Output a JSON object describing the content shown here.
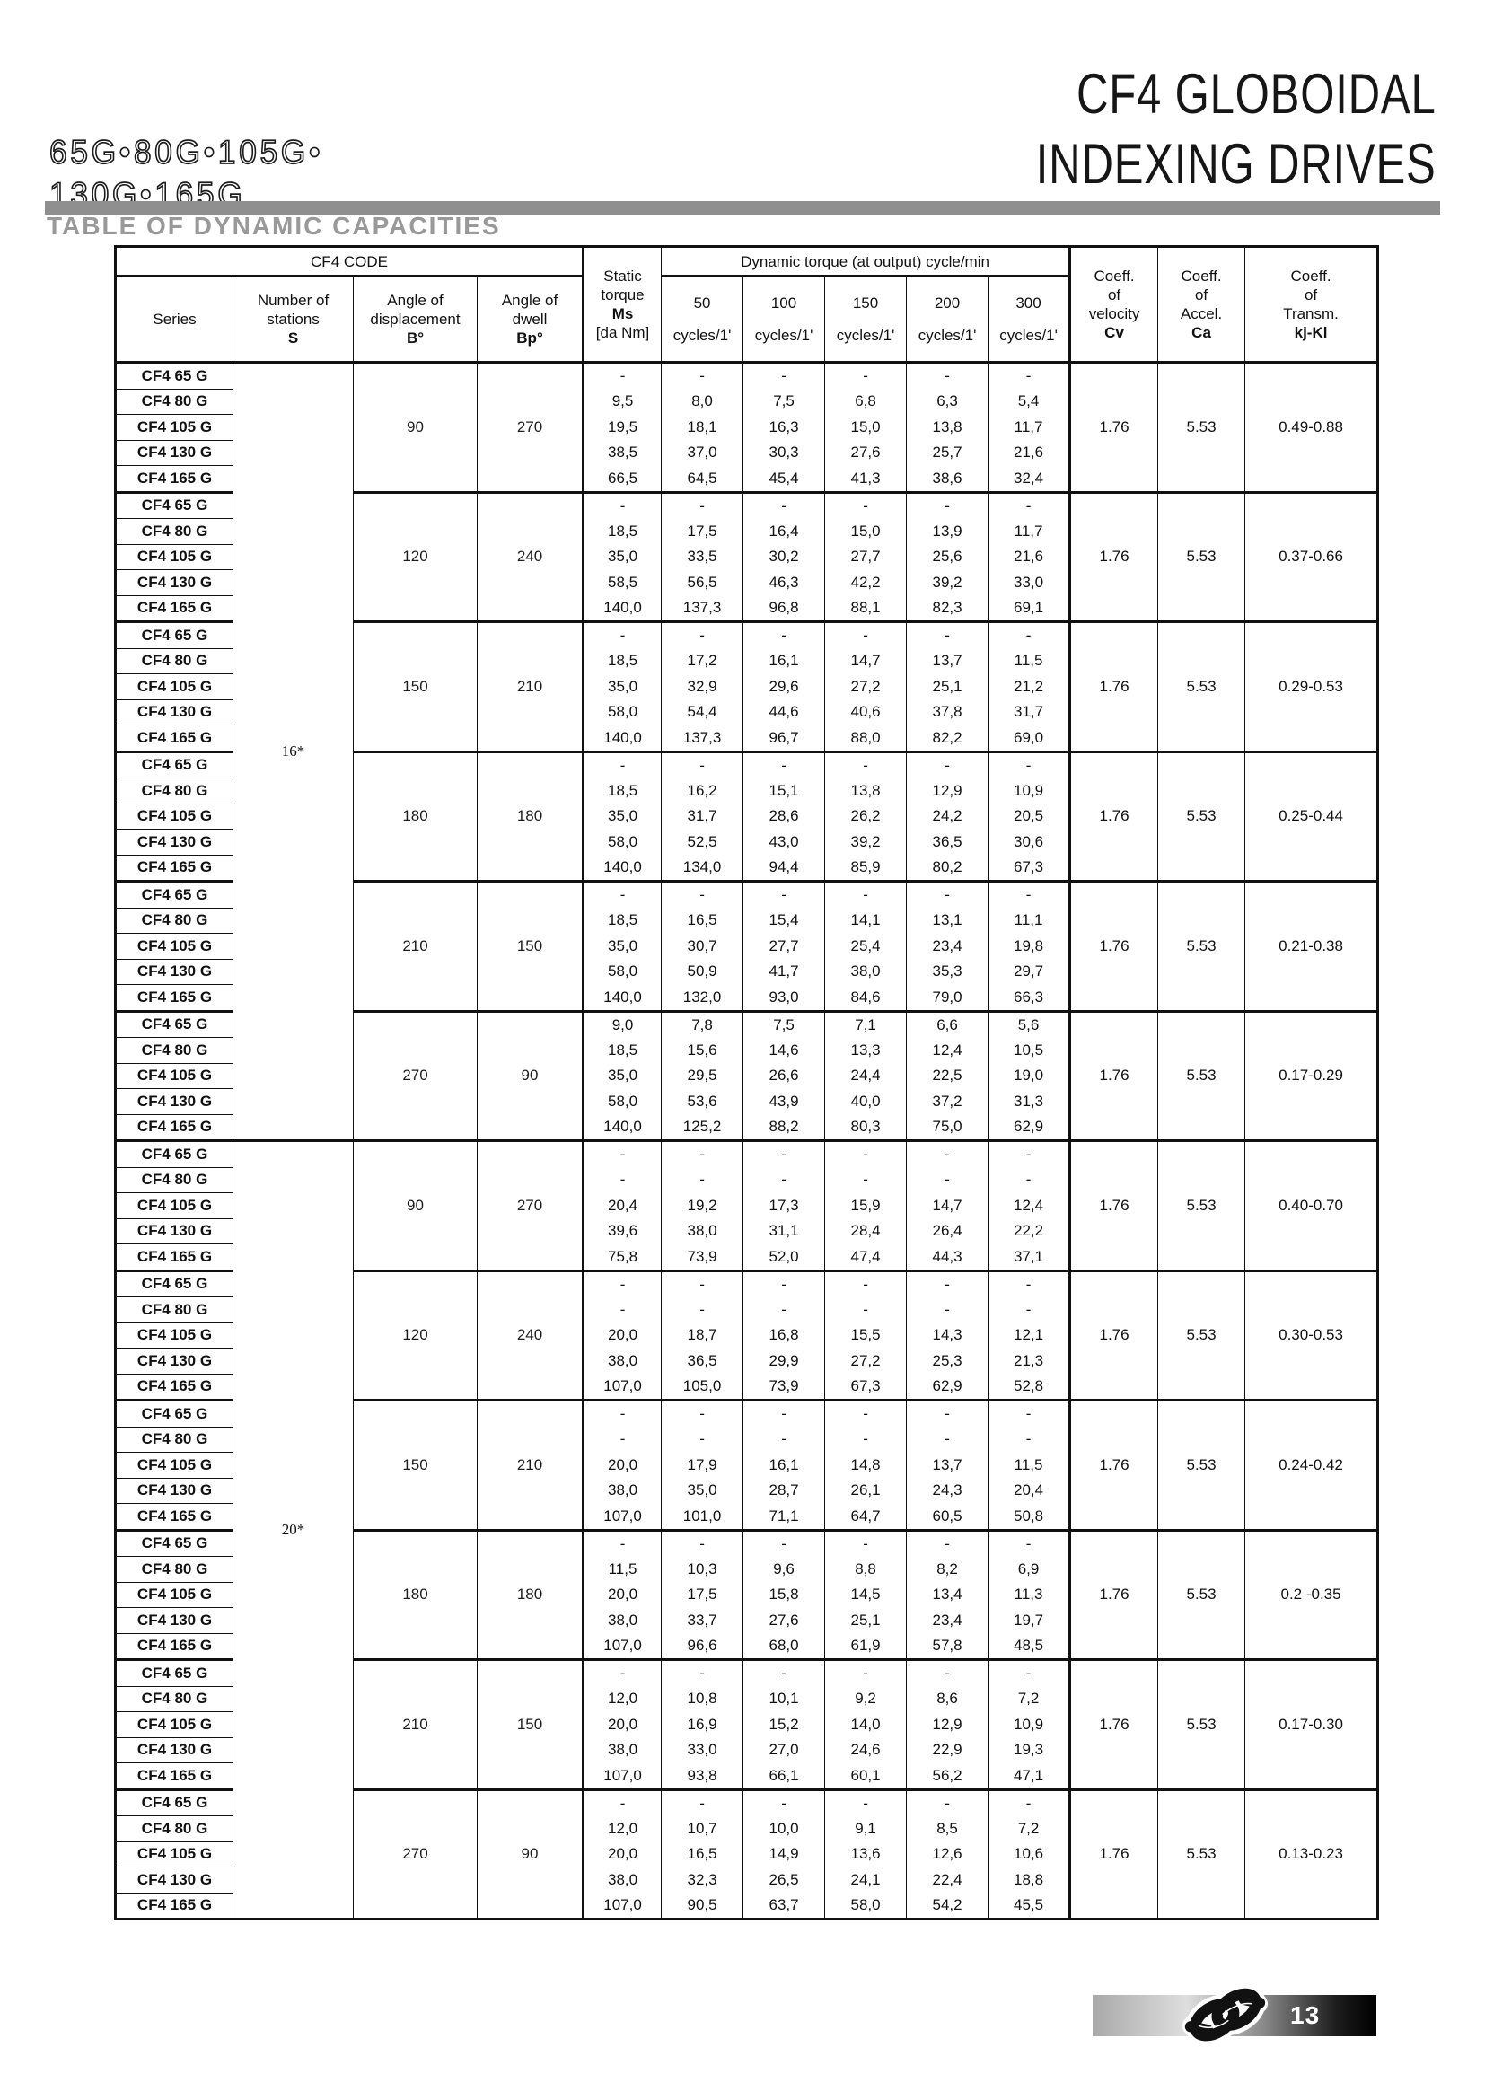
{
  "page": {
    "codes": "65G•80G•105G•\n130G•165G",
    "title": "CF4 GLOBOIDAL\nINDEXING DRIVES",
    "section_title": "TABLE OF DYNAMIC CAPACITIES",
    "page_number": "13",
    "logo_icon": "knot-logo-icon",
    "accent_gray": "#8f8f8f",
    "title_gray": "#999999"
  },
  "table": {
    "header": {
      "cf4_code": "CF4 CODE",
      "dynamic_group": "Dynamic torque (at output) cycle/min",
      "series": "Series",
      "stations_label": "Number of\nstations",
      "stations_symbol": "S",
      "displacement_label": "Angle of\ndisplacement",
      "displacement_symbol": "B°",
      "dwell_label": "Angle of\ndwell",
      "dwell_symbol": "Bp°",
      "static_label": "Static\ntorque",
      "static_symbol": "Ms",
      "static_unit": "[da Nm]",
      "cycles": [
        {
          "rate": "50",
          "unit": "cycles/1'"
        },
        {
          "rate": "100",
          "unit": "cycles/1'"
        },
        {
          "rate": "150",
          "unit": "cycles/1'"
        },
        {
          "rate": "200",
          "unit": "cycles/1'"
        },
        {
          "rate": "300",
          "unit": "cycles/1'"
        }
      ],
      "cv_label": "Coeff.\nof\nvelocity",
      "cv_symbol": "Cv",
      "ca_label": "Coeff.\nof\nAccel.",
      "ca_symbol": "Ca",
      "kj_label": "Coeff.\nof\nTransm.",
      "kj_symbol": "kj-Kl"
    },
    "series_names": [
      "CF4 65 G",
      "CF4 80 G",
      "CF4 105 G",
      "CF4 130 G",
      "CF4 165 G"
    ],
    "groups": [
      {
        "label": "16*",
        "blocks": 6
      },
      {
        "label": "20*",
        "blocks": 6
      }
    ],
    "blocks": [
      {
        "group": "16*",
        "displacement": "90",
        "dwell": "270",
        "rows": [
          [
            "-",
            "-",
            "-",
            "-",
            "-",
            "-"
          ],
          [
            "9,5",
            "8,0",
            "7,5",
            "6,8",
            "6,3",
            "5,4"
          ],
          [
            "19,5",
            "18,1",
            "16,3",
            "15,0",
            "13,8",
            "11,7"
          ],
          [
            "38,5",
            "37,0",
            "30,3",
            "27,6",
            "25,7",
            "21,6"
          ],
          [
            "66,5",
            "64,5",
            "45,4",
            "41,3",
            "38,6",
            "32,4"
          ]
        ],
        "cv": "1.76",
        "ca": "5.53",
        "kj": "0.49-0.88"
      },
      {
        "group": "16*",
        "displacement": "120",
        "dwell": "240",
        "rows": [
          [
            "-",
            "-",
            "-",
            "-",
            "-",
            "-"
          ],
          [
            "18,5",
            "17,5",
            "16,4",
            "15,0",
            "13,9",
            "11,7"
          ],
          [
            "35,0",
            "33,5",
            "30,2",
            "27,7",
            "25,6",
            "21,6"
          ],
          [
            "58,5",
            "56,5",
            "46,3",
            "42,2",
            "39,2",
            "33,0"
          ],
          [
            "140,0",
            "137,3",
            "96,8",
            "88,1",
            "82,3",
            "69,1"
          ]
        ],
        "cv": "1.76",
        "ca": "5.53",
        "kj": "0.37-0.66"
      },
      {
        "group": "16*",
        "displacement": "150",
        "dwell": "210",
        "rows": [
          [
            "-",
            "-",
            "-",
            "-",
            "-",
            "-"
          ],
          [
            "18,5",
            "17,2",
            "16,1",
            "14,7",
            "13,7",
            "11,5"
          ],
          [
            "35,0",
            "32,9",
            "29,6",
            "27,2",
            "25,1",
            "21,2"
          ],
          [
            "58,0",
            "54,4",
            "44,6",
            "40,6",
            "37,8",
            "31,7"
          ],
          [
            "140,0",
            "137,3",
            "96,7",
            "88,0",
            "82,2",
            "69,0"
          ]
        ],
        "cv": "1.76",
        "ca": "5.53",
        "kj": "0.29-0.53"
      },
      {
        "group": "16*",
        "displacement": "180",
        "dwell": "180",
        "rows": [
          [
            "-",
            "-",
            "-",
            "-",
            "-",
            "-"
          ],
          [
            "18,5",
            "16,2",
            "15,1",
            "13,8",
            "12,9",
            "10,9"
          ],
          [
            "35,0",
            "31,7",
            "28,6",
            "26,2",
            "24,2",
            "20,5"
          ],
          [
            "58,0",
            "52,5",
            "43,0",
            "39,2",
            "36,5",
            "30,6"
          ],
          [
            "140,0",
            "134,0",
            "94,4",
            "85,9",
            "80,2",
            "67,3"
          ]
        ],
        "cv": "1.76",
        "ca": "5.53",
        "kj": "0.25-0.44"
      },
      {
        "group": "16*",
        "displacement": "210",
        "dwell": "150",
        "rows": [
          [
            "-",
            "-",
            "-",
            "-",
            "-",
            "-"
          ],
          [
            "18,5",
            "16,5",
            "15,4",
            "14,1",
            "13,1",
            "11,1"
          ],
          [
            "35,0",
            "30,7",
            "27,7",
            "25,4",
            "23,4",
            "19,8"
          ],
          [
            "58,0",
            "50,9",
            "41,7",
            "38,0",
            "35,3",
            "29,7"
          ],
          [
            "140,0",
            "132,0",
            "93,0",
            "84,6",
            "79,0",
            "66,3"
          ]
        ],
        "cv": "1.76",
        "ca": "5.53",
        "kj": "0.21-0.38"
      },
      {
        "group": "16*",
        "displacement": "270",
        "dwell": "90",
        "rows": [
          [
            "9,0",
            "7,8",
            "7,5",
            "7,1",
            "6,6",
            "5,6"
          ],
          [
            "18,5",
            "15,6",
            "14,6",
            "13,3",
            "12,4",
            "10,5"
          ],
          [
            "35,0",
            "29,5",
            "26,6",
            "24,4",
            "22,5",
            "19,0"
          ],
          [
            "58,0",
            "53,6",
            "43,9",
            "40,0",
            "37,2",
            "31,3"
          ],
          [
            "140,0",
            "125,2",
            "88,2",
            "80,3",
            "75,0",
            "62,9"
          ]
        ],
        "cv": "1.76",
        "ca": "5.53",
        "kj": "0.17-0.29"
      },
      {
        "group": "20*",
        "displacement": "90",
        "dwell": "270",
        "rows": [
          [
            "-",
            "-",
            "-",
            "-",
            "-",
            "-"
          ],
          [
            "-",
            "-",
            "-",
            "-",
            "-",
            "-"
          ],
          [
            "20,4",
            "19,2",
            "17,3",
            "15,9",
            "14,7",
            "12,4"
          ],
          [
            "39,6",
            "38,0",
            "31,1",
            "28,4",
            "26,4",
            "22,2"
          ],
          [
            "75,8",
            "73,9",
            "52,0",
            "47,4",
            "44,3",
            "37,1"
          ]
        ],
        "cv": "1.76",
        "ca": "5.53",
        "kj": "0.40-0.70"
      },
      {
        "group": "20*",
        "displacement": "120",
        "dwell": "240",
        "rows": [
          [
            "-",
            "-",
            "-",
            "-",
            "-",
            "-"
          ],
          [
            "-",
            "-",
            "-",
            "-",
            "-",
            "-"
          ],
          [
            "20,0",
            "18,7",
            "16,8",
            "15,5",
            "14,3",
            "12,1"
          ],
          [
            "38,0",
            "36,5",
            "29,9",
            "27,2",
            "25,3",
            "21,3"
          ],
          [
            "107,0",
            "105,0",
            "73,9",
            "67,3",
            "62,9",
            "52,8"
          ]
        ],
        "cv": "1.76",
        "ca": "5.53",
        "kj": "0.30-0.53"
      },
      {
        "group": "20*",
        "displacement": "150",
        "dwell": "210",
        "rows": [
          [
            "-",
            "-",
            "-",
            "-",
            "-",
            "-"
          ],
          [
            "-",
            "-",
            "-",
            "-",
            "-",
            "-"
          ],
          [
            "20,0",
            "17,9",
            "16,1",
            "14,8",
            "13,7",
            "11,5"
          ],
          [
            "38,0",
            "35,0",
            "28,7",
            "26,1",
            "24,3",
            "20,4"
          ],
          [
            "107,0",
            "101,0",
            "71,1",
            "64,7",
            "60,5",
            "50,8"
          ]
        ],
        "cv": "1.76",
        "ca": "5.53",
        "kj": "0.24-0.42"
      },
      {
        "group": "20*",
        "displacement": "180",
        "dwell": "180",
        "rows": [
          [
            "-",
            "-",
            "-",
            "-",
            "-",
            "-"
          ],
          [
            "11,5",
            "10,3",
            "9,6",
            "8,8",
            "8,2",
            "6,9"
          ],
          [
            "20,0",
            "17,5",
            "15,8",
            "14,5",
            "13,4",
            "11,3"
          ],
          [
            "38,0",
            "33,7",
            "27,6",
            "25,1",
            "23,4",
            "19,7"
          ],
          [
            "107,0",
            "96,6",
            "68,0",
            "61,9",
            "57,8",
            "48,5"
          ]
        ],
        "cv": "1.76",
        "ca": "5.53",
        "kj": "0.2 -0.35"
      },
      {
        "group": "20*",
        "displacement": "210",
        "dwell": "150",
        "rows": [
          [
            "-",
            "-",
            "-",
            "-",
            "-",
            "-"
          ],
          [
            "12,0",
            "10,8",
            "10,1",
            "9,2",
            "8,6",
            "7,2"
          ],
          [
            "20,0",
            "16,9",
            "15,2",
            "14,0",
            "12,9",
            "10,9"
          ],
          [
            "38,0",
            "33,0",
            "27,0",
            "24,6",
            "22,9",
            "19,3"
          ],
          [
            "107,0",
            "93,8",
            "66,1",
            "60,1",
            "56,2",
            "47,1"
          ]
        ],
        "cv": "1.76",
        "ca": "5.53",
        "kj": "0.17-0.30"
      },
      {
        "group": "20*",
        "displacement": "270",
        "dwell": "90",
        "rows": [
          [
            "-",
            "-",
            "-",
            "-",
            "-",
            "-"
          ],
          [
            "12,0",
            "10,7",
            "10,0",
            "9,1",
            "8,5",
            "7,2"
          ],
          [
            "20,0",
            "16,5",
            "14,9",
            "13,6",
            "12,6",
            "10,6"
          ],
          [
            "38,0",
            "32,3",
            "26,5",
            "24,1",
            "22,4",
            "18,8"
          ],
          [
            "107,0",
            "90,5",
            "63,7",
            "58,0",
            "54,2",
            "45,5"
          ]
        ],
        "cv": "1.76",
        "ca": "5.53",
        "kj": "0.13-0.23"
      }
    ]
  }
}
